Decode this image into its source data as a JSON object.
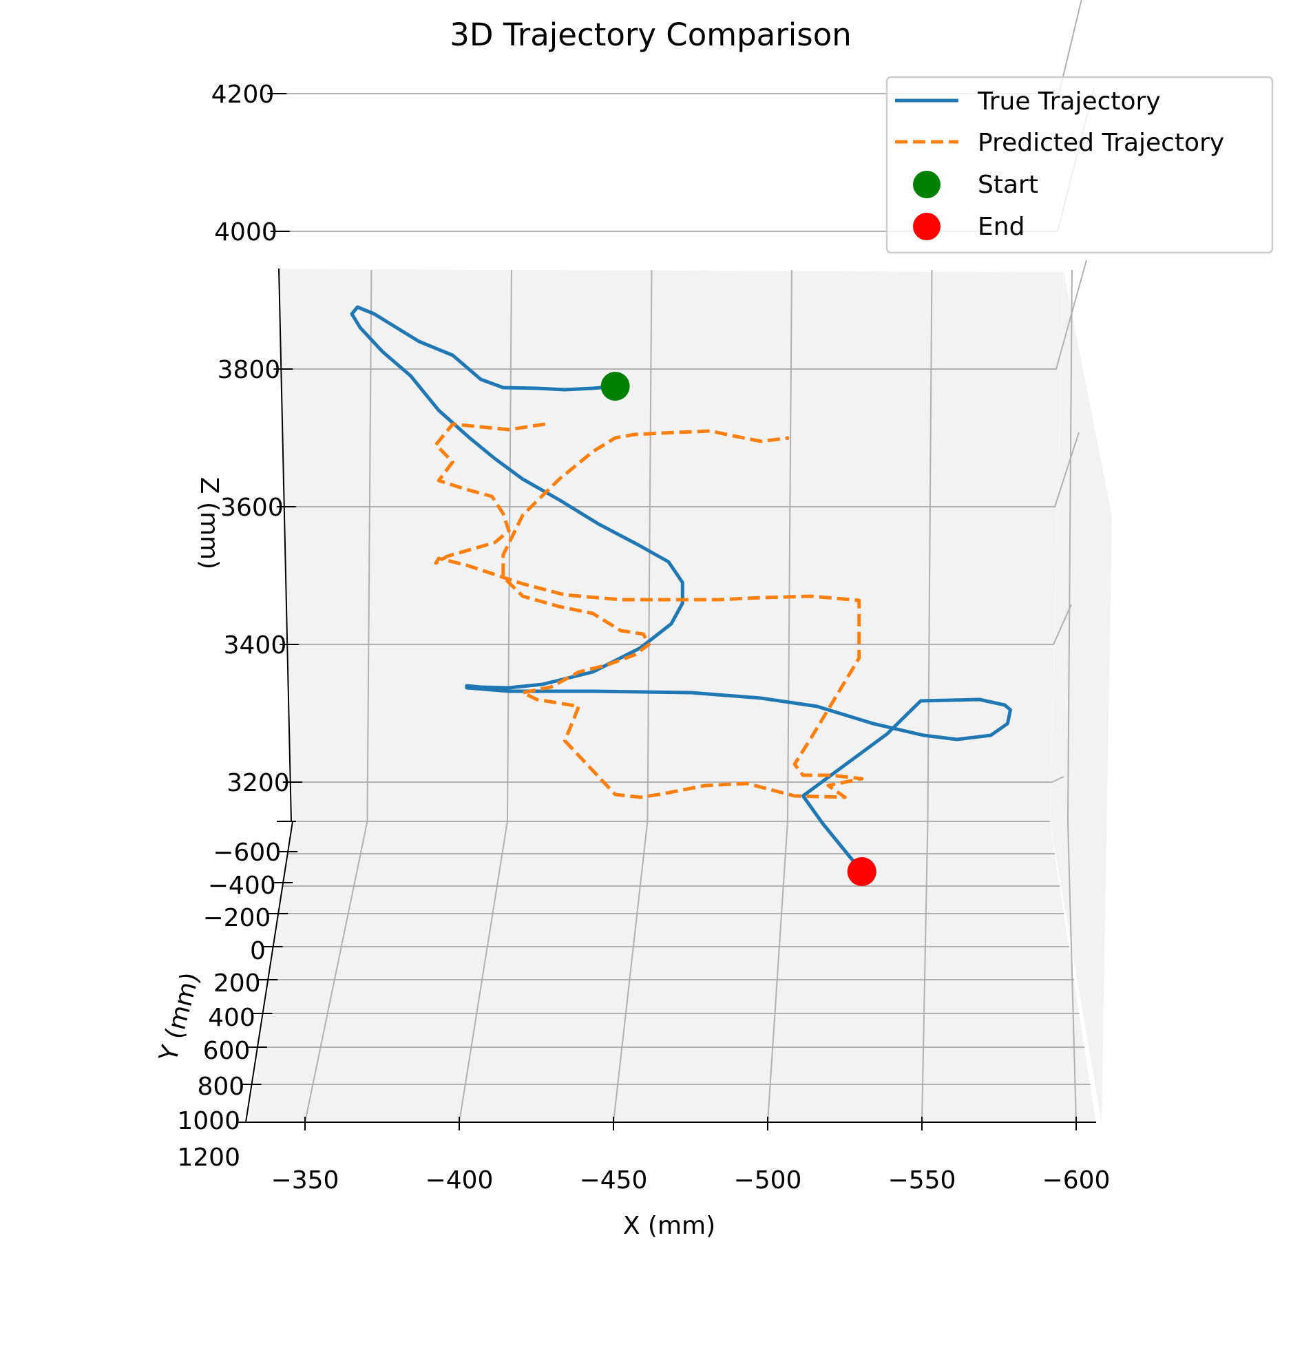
{
  "chart_data": {
    "type": "line",
    "title": "3D Trajectory Comparison",
    "xlabel": "X (mm)",
    "ylabel": "Y (mm)",
    "zlabel": "Z (mm)",
    "x_ticks": [
      "−350",
      "−400",
      "−450",
      "−500",
      "−550",
      "−600"
    ],
    "y_ticks": [
      "−600",
      "−400",
      "−200",
      "0",
      "200",
      "400",
      "600",
      "800",
      "1000",
      "1200"
    ],
    "z_ticks": [
      "3200",
      "3400",
      "3600",
      "3800",
      "4000",
      "4200"
    ],
    "xlim": [
      -332,
      -605
    ],
    "zlim": [
      3130,
      4340
    ],
    "grid": true,
    "legend_position": "top-right",
    "colors": {
      "true": "#1f77b4",
      "predicted": "#ff7f0e",
      "start": "#008000",
      "end": "#ff0000"
    },
    "legend": [
      {
        "label": "True Trajectory",
        "kind": "solid-line",
        "color": "#1f77b4"
      },
      {
        "label": "Predicted Trajectory",
        "kind": "dashed-line",
        "color": "#ff7f0e"
      },
      {
        "label": "Start",
        "kind": "marker",
        "color": "#008000"
      },
      {
        "label": "End",
        "kind": "marker",
        "color": "#ff0000"
      }
    ],
    "series": [
      {
        "name": "True Trajectory",
        "style": "solid",
        "x": [
          -438,
          -430,
          -420,
          -410,
          -398,
          -390,
          -380,
          -368,
          -360,
          -352,
          -346,
          -344,
          -347,
          -355,
          -365,
          -375,
          -386,
          -395,
          -405,
          -418,
          -432,
          -446,
          -457,
          -462,
          -462,
          -458,
          -447,
          -430,
          -412,
          -400,
          -390,
          -385,
          -385,
          -400,
          -430,
          -465,
          -490,
          -510,
          -530,
          -548,
          -560,
          -572,
          -578,
          -579,
          -577,
          -568,
          -547,
          -535,
          -520,
          -505,
          -512,
          -526
        ],
        "z": [
          3775,
          3772,
          3770,
          3772,
          3773,
          3785,
          3820,
          3840,
          3860,
          3880,
          3890,
          3880,
          3860,
          3825,
          3790,
          3740,
          3700,
          3670,
          3640,
          3610,
          3575,
          3545,
          3520,
          3490,
          3460,
          3430,
          3395,
          3360,
          3342,
          3337,
          3338,
          3340,
          3337,
          3332,
          3332,
          3330,
          3322,
          3310,
          3285,
          3268,
          3262,
          3268,
          3285,
          3305,
          3312,
          3320,
          3318,
          3270,
          3225,
          3180,
          3140,
          3070
        ]
      },
      {
        "name": "Predicted Trajectory",
        "style": "dashed",
        "x": [
          -413,
          -400,
          -380,
          -374,
          -380,
          -375,
          -385,
          -394,
          -398,
          -400,
          -395,
          -378,
          -374,
          -375,
          -385,
          -405,
          -420,
          -440,
          -460,
          -475,
          -490,
          -508,
          -525,
          -525,
          -508,
          -502,
          -505,
          -515,
          -526,
          -514,
          -520,
          -502,
          -485,
          -470,
          -455,
          -447,
          -438,
          -420,
          -425,
          -410,
          -405,
          -415,
          -425,
          -435,
          -445,
          -450,
          -448,
          -440,
          -430,
          -418,
          -405,
          -398,
          -398,
          -405,
          -418,
          -430,
          -438,
          -445,
          -460,
          -472,
          -480,
          -490,
          -500
        ],
        "z": [
          3720,
          3712,
          3720,
          3690,
          3665,
          3638,
          3625,
          3615,
          3590,
          3565,
          3548,
          3528,
          3518,
          3525,
          3515,
          3488,
          3472,
          3465,
          3465,
          3465,
          3468,
          3470,
          3464,
          3380,
          3265,
          3226,
          3210,
          3210,
          3205,
          3195,
          3178,
          3180,
          3198,
          3195,
          3183,
          3178,
          3182,
          3260,
          3310,
          3320,
          3330,
          3338,
          3360,
          3370,
          3385,
          3400,
          3415,
          3420,
          3445,
          3455,
          3470,
          3498,
          3530,
          3588,
          3640,
          3680,
          3700,
          3705,
          3708,
          3710,
          3703,
          3695,
          3700
        ]
      }
    ],
    "markers": {
      "start": {
        "label": "Start",
        "x": -438,
        "z": 3775
      },
      "end": {
        "label": "End",
        "x": -526,
        "z": 3070
      }
    }
  }
}
